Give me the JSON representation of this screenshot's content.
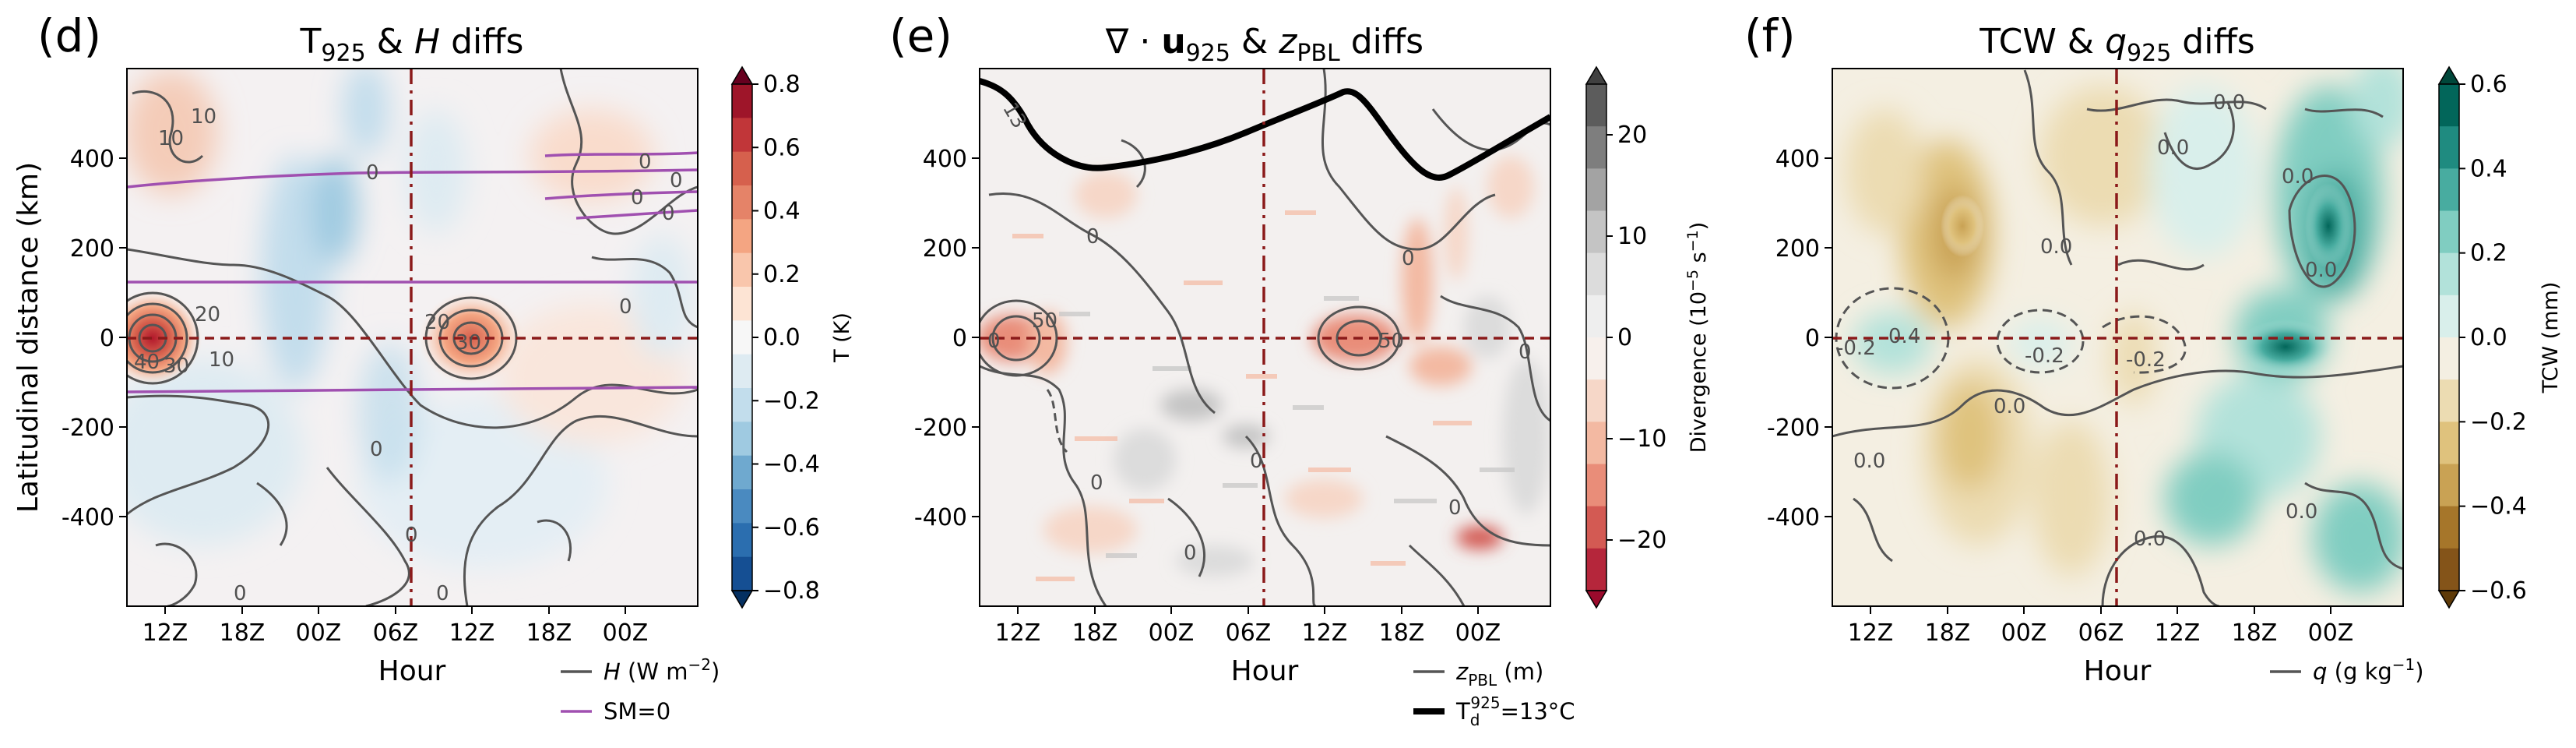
{
  "figure": {
    "shared_ylabel": "Latitudinal distance (km)",
    "xlabel": "Hour"
  },
  "colors": {
    "contour_grey": "#555555",
    "sm_purple": "#a050b0",
    "crosshair": "#8b1a1a",
    "dewpoint_line": "#000000"
  },
  "chart_data": [
    {
      "type": "heatmap",
      "panel": "(d)",
      "title": "T925 & H diffs",
      "title_parts": {
        "a": "T",
        "sub": "925",
        "b": " & ",
        "italic": "H",
        "c": " diffs"
      },
      "xlabel": "Hour",
      "ylabel": "Latitudinal distance (km)",
      "x_ticks": [
        "12Z",
        "18Z",
        "00Z",
        "06Z",
        "12Z",
        "18Z",
        "00Z"
      ],
      "y_ticks": [
        "400",
        "200",
        "0",
        "-200",
        "-400"
      ],
      "y_values": [
        400,
        200,
        0,
        -200,
        -400
      ],
      "ylim": [
        -600,
        600
      ],
      "colorbar": {
        "label": "T (K)",
        "cmap": "RdBu_r",
        "ticks": [
          "0.8",
          "0.6",
          "0.4",
          "0.2",
          "0.0",
          "−0.2",
          "−0.4",
          "−0.6",
          "−0.8"
        ],
        "range": [
          -0.8,
          0.8
        ],
        "colors": [
          "#67001f",
          "#9e1529",
          "#c13639",
          "#d6604d",
          "#e58368",
          "#f4a582",
          "#f9c6ac",
          "#fde4d4",
          "#f7f7f7",
          "#deebf2",
          "#c2ddec",
          "#9fcae1",
          "#6fa9cf",
          "#4a8ac0",
          "#2b6eaf",
          "#154f93",
          "#053061"
        ]
      },
      "contour_labels": [
        "10",
        "10",
        "20",
        "30",
        "40",
        "10",
        "20",
        "30",
        "0",
        "0",
        "0",
        "0",
        "0"
      ],
      "sm_labels": [
        "0",
        "0",
        "0",
        "0",
        "0"
      ],
      "legend": [
        {
          "label": "H",
          "unit": " (W m",
          "exp": "−2",
          "tail": ")",
          "style": "grey-line"
        },
        {
          "label": "SM=0",
          "style": "purple-line"
        }
      ]
    },
    {
      "type": "heatmap",
      "panel": "(e)",
      "title": "∇·u925 & zPBL diffs",
      "title_parts": {
        "a": "∇ · ",
        "bold": "u",
        "sub": "925",
        "b": " & ",
        "italic": "z",
        "sub2": "PBL",
        "c": " diffs"
      },
      "xlabel": "Hour",
      "x_ticks": [
        "12Z",
        "18Z",
        "00Z",
        "06Z",
        "12Z",
        "18Z",
        "00Z"
      ],
      "y_ticks": [
        "400",
        "200",
        "0",
        "-200",
        "-400"
      ],
      "y_values": [
        400,
        200,
        0,
        -200,
        -400
      ],
      "ylim": [
        -600,
        600
      ],
      "colorbar": {
        "label": "Divergence (10",
        "label_exp": "−5",
        "label_tail": " s",
        "label_exp2": "−1",
        "label_end": ")",
        "ticks": [
          "20",
          "10",
          "0",
          "−10",
          "−20"
        ],
        "range": [
          -25,
          25
        ],
        "colors": [
          "#404040",
          "#5c5c5c",
          "#7e7e7e",
          "#a3a3a3",
          "#c4c4c4",
          "#dcdcdc",
          "#eeeeee",
          "#f7f0ec",
          "#f6d7c8",
          "#f3b9a2",
          "#e98d79",
          "#d35a53",
          "#b5263b",
          "#9a0a2c"
        ]
      },
      "contour_labels": [
        "50",
        "50",
        "0",
        "0",
        "0",
        "0",
        "0",
        "0",
        "0",
        "0"
      ],
      "dewpoint_label": "13",
      "legend": [
        {
          "label": "z",
          "sub": "PBL",
          "tail": " (m)",
          "style": "grey-line"
        },
        {
          "label": "T",
          "sub": "d",
          "sup": "925",
          "tail": "=13°C",
          "style": "black-thick"
        }
      ]
    },
    {
      "type": "heatmap",
      "panel": "(f)",
      "title": "TCW & q925 diffs",
      "title_parts": {
        "a": "TCW & ",
        "italic": "q",
        "sub": "925",
        "c": " diffs"
      },
      "xlabel": "Hour",
      "x_ticks": [
        "12Z",
        "18Z",
        "00Z",
        "06Z",
        "12Z",
        "18Z",
        "00Z"
      ],
      "y_ticks": [
        "400",
        "200",
        "0",
        "-200",
        "-400"
      ],
      "y_values": [
        400,
        200,
        0,
        -200,
        -400
      ],
      "ylim": [
        -600,
        600
      ],
      "colorbar": {
        "label": "TCW (mm)",
        "cmap": "BrBG",
        "ticks": [
          "0.6",
          "0.4",
          "0.2",
          "0.0",
          "−0.2",
          "−0.4",
          "−0.6"
        ],
        "range": [
          -0.6,
          0.6
        ],
        "colors": [
          "#00473a",
          "#02665a",
          "#1f8b80",
          "#48aca0",
          "#80cdc1",
          "#b2e2da",
          "#d9efeb",
          "#f4efe2",
          "#ecdcb2",
          "#dfc27d",
          "#c9a254",
          "#a6762a",
          "#845419",
          "#5e3a08"
        ]
      },
      "contour_labels": [
        "0.0",
        "0.0",
        "0.0",
        "0.0",
        "-0.2",
        "0.4",
        "-0.2",
        "0.0",
        "0.0",
        "0.0",
        "0.0",
        "0.0",
        "-0.2"
      ],
      "legend": [
        {
          "label": "q",
          "unit": " (g kg",
          "exp": "−1",
          "tail": ")",
          "style": "grey-line"
        }
      ]
    }
  ]
}
